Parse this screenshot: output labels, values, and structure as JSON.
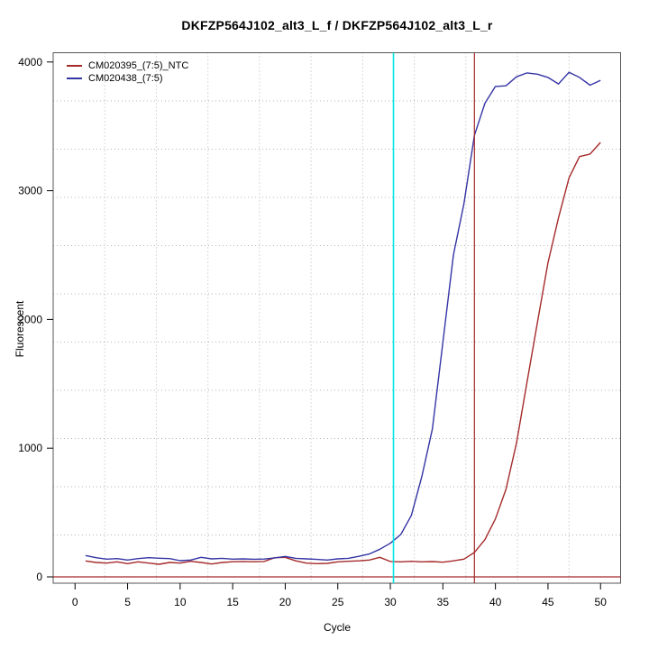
{
  "title": "DKFZP564J102_alt3_L_f / DKFZP564J102_alt3_L_r",
  "legend": {
    "items": [
      {
        "label": "CM020395_(7:5)_NTC",
        "color": "#A52A2A"
      },
      {
        "label": "CM020438_(7:5)",
        "color": "#3434A4"
      }
    ]
  },
  "chart_data": {
    "type": "line",
    "title": "DKFZP564J102_alt3_L_f / DKFZP564J102_alt3_L_r",
    "xlabel": "Cycle",
    "ylabel": "Fluorescent",
    "xlim": [
      -2.08,
      51.91
    ],
    "ylim": [
      -49,
      4072
    ],
    "x_ticks": [
      0,
      5,
      10,
      15,
      20,
      25,
      30,
      35,
      40,
      45,
      50
    ],
    "y_ticks": [
      0,
      1000,
      2000,
      3000,
      4000
    ],
    "grid": {
      "style": "dotted",
      "divisions": 11,
      "color": "#b5b5b5"
    },
    "legend_position": "top-left",
    "x": [
      1,
      2,
      3,
      4,
      5,
      6,
      7,
      8,
      9,
      10,
      11,
      12,
      13,
      14,
      15,
      16,
      17,
      18,
      19,
      20,
      21,
      22,
      23,
      24,
      25,
      26,
      27,
      28,
      29,
      30,
      31,
      32,
      33,
      34,
      35,
      36,
      37,
      38,
      39,
      40,
      41,
      42,
      43,
      44,
      45,
      46,
      47,
      48,
      49,
      50
    ],
    "series": [
      {
        "name": "CM020395_(7:5)_NTC",
        "color": "#A52A2A",
        "values": [
          124,
          112,
          107,
          117,
          103,
          117,
          107,
          98,
          112,
          107,
          121,
          112,
          100,
          112,
          118,
          120,
          118,
          120,
          149,
          152,
          125,
          107,
          103,
          105,
          117,
          121,
          125,
          131,
          152,
          120,
          117,
          121,
          117,
          119,
          114,
          125,
          138,
          190,
          290,
          450,
          680,
          1040,
          1510,
          1980,
          2440,
          2790,
          3100,
          3265,
          3285,
          3375
        ]
      },
      {
        "name": "CM020438_(7:5)",
        "color": "#3434A4",
        "values": [
          166,
          149,
          138,
          142,
          131,
          142,
          149,
          145,
          142,
          126,
          131,
          152,
          140,
          144,
          138,
          140,
          137,
          139,
          148,
          159,
          144,
          140,
          136,
          131,
          140,
          144,
          160,
          178,
          215,
          261,
          330,
          478,
          780,
          1150,
          1820,
          2500,
          2900,
          3430,
          3680,
          3810,
          3815,
          3885,
          3915,
          3905,
          3880,
          3830,
          3920,
          3880,
          3820,
          3858
        ]
      }
    ],
    "markers": {
      "cyan_vline_cycle": 30.3,
      "cyan_vline_color": "#00E5E5",
      "red_vline_cycle": 38.0,
      "red_vline_color": "#A52A2A",
      "red_hline_value": 0,
      "red_hline_color": "#A52A2A"
    },
    "axis_color": "#000000",
    "box_color": "#555555"
  }
}
